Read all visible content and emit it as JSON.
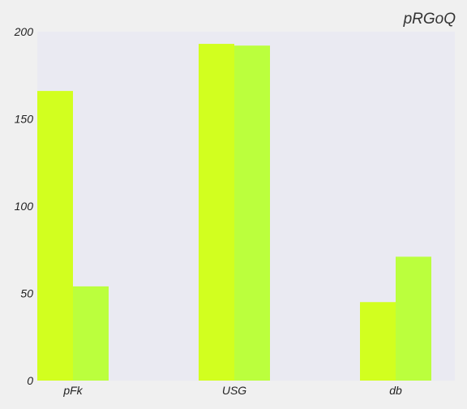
{
  "chart_data": {
    "type": "bar",
    "title": "pRGoQ",
    "xlabel": "",
    "ylabel": "",
    "categories": [
      "pFk",
      "USG",
      "db"
    ],
    "series": [
      {
        "values": [
          166,
          193,
          45
        ],
        "color": "#d2ff1f"
      },
      {
        "values": [
          54,
          192,
          71
        ],
        "color": "#bbff3d"
      }
    ],
    "ylim": [
      0,
      200
    ],
    "yticks": [
      0,
      50,
      100,
      150,
      200
    ],
    "grid": false,
    "legend": "none"
  },
  "colors": {
    "page_background": "#f0f0f0",
    "plot_background": "#eaeaf2",
    "text": "#222222"
  }
}
